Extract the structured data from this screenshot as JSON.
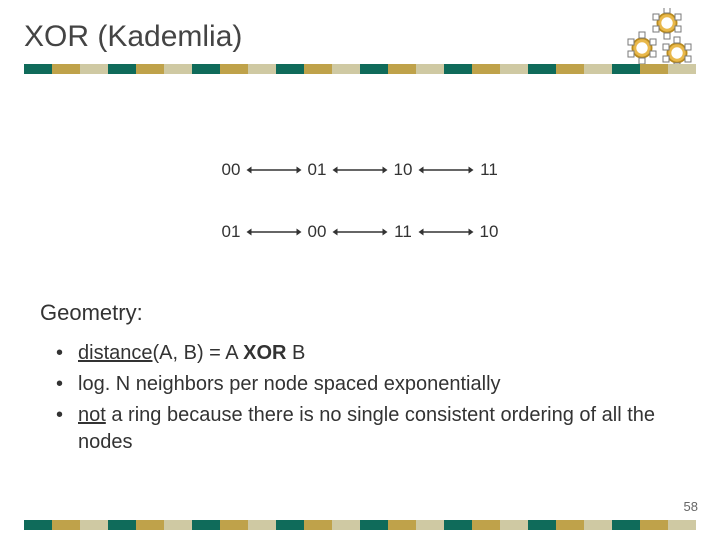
{
  "title": "XOR (Kademlia)",
  "page_number": "58",
  "stripe_colors": [
    "#0f6b5a",
    "#bfa24a",
    "#cfc9a3",
    "#0f6b5a",
    "#bfa24a",
    "#cfc9a3",
    "#0f6b5a",
    "#bfa24a",
    "#cfc9a3",
    "#0f6b5a",
    "#bfa24a",
    "#cfc9a3",
    "#0f6b5a",
    "#bfa24a",
    "#cfc9a3",
    "#0f6b5a",
    "#bfa24a",
    "#cfc9a3",
    "#0f6b5a",
    "#bfa24a",
    "#cfc9a3",
    "#0f6b5a",
    "#bfa24a",
    "#cfc9a3"
  ],
  "logo": {
    "ring_fill": "#e9b84a",
    "ring_stroke": "#b88a1e",
    "box_fill": "#ffffff",
    "box_stroke": "#7a7a7a"
  },
  "rows": [
    {
      "nodes": [
        "00",
        "01",
        "10",
        "11"
      ]
    },
    {
      "nodes": [
        "01",
        "00",
        "11",
        "10"
      ]
    }
  ],
  "arrow": {
    "stroke": "#333333",
    "stroke_width": 1.4,
    "head": 5
  },
  "geometry": {
    "heading": "Geometry:",
    "items": [
      {
        "parts": [
          {
            "text": "distance",
            "style": "u"
          },
          {
            "text": "(A, B) = A "
          },
          {
            "text": "XOR",
            "style": "b"
          },
          {
            "text": " B"
          }
        ]
      },
      {
        "parts": [
          {
            "text": "log. N neighbors per node spaced exponentially"
          }
        ]
      },
      {
        "parts": [
          {
            "text": "not",
            "style": "u"
          },
          {
            "text": " a ring because there is no single consistent ordering of all the nodes"
          }
        ]
      }
    ]
  }
}
